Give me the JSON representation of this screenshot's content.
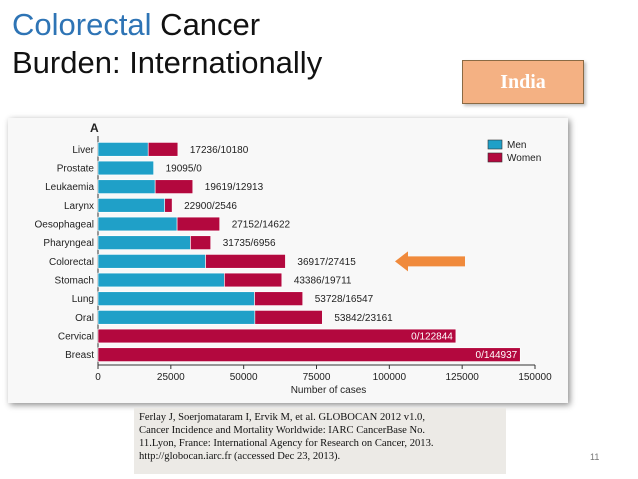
{
  "slide": {
    "title_accent": "Colorectal",
    "title_rest": " Cancer",
    "title_line2": "Burden: Internationally",
    "badge": "India",
    "citation": [
      "Ferlay J, Soerjomataram I, Ervik M, et al. GLOBOCAN 2012 v1.0,",
      "Cancer Incidence and Mortality Worldwide: IARC CancerBase No.",
      "11.Lyon, France: International Agency for Research on Cancer, 2013.",
      "http://globocan.iarc.fr (accessed Dec 23, 2013)."
    ],
    "page_number": "11"
  },
  "chart_data": {
    "type": "bar",
    "orientation": "horizontal",
    "stacked": true,
    "panel_label": "A",
    "categories": [
      "Liver",
      "Prostate",
      "Leukaemia",
      "Larynx",
      "Oesophageal",
      "Pharyngeal",
      "Colorectal",
      "Stomach",
      "Lung",
      "Oral",
      "Cervical",
      "Breast"
    ],
    "series": [
      {
        "name": "Men",
        "color": "#1fa0c8",
        "values": [
          17236,
          19095,
          19619,
          22900,
          27152,
          31735,
          36917,
          43386,
          53728,
          53842,
          0,
          0
        ]
      },
      {
        "name": "Women",
        "color": "#b3083e",
        "values": [
          10180,
          0,
          12913,
          2546,
          14622,
          6956,
          27415,
          19711,
          16547,
          23161,
          122844,
          144937
        ]
      }
    ],
    "value_labels": [
      "17236/10180",
      "19095/0",
      "19619/12913",
      "22900/2546",
      "27152/14622",
      "31735/6956",
      "36917/27415",
      "43386/19711",
      "53728/16547",
      "53842/23161",
      "0/122844",
      "0/144937"
    ],
    "xlabel": "Number of cases",
    "xlim": [
      0,
      150000
    ],
    "xticks": [
      0,
      25000,
      50000,
      75000,
      100000,
      125000,
      150000
    ],
    "xtick_labels": [
      "0",
      "25000",
      "50000",
      "75000",
      "100000",
      "125000",
      "150000"
    ],
    "legend": [
      "Men",
      "Women"
    ],
    "legend_position": "top-right",
    "highlight_category": "Colorectal",
    "arrow_color": "#f08a3c"
  }
}
